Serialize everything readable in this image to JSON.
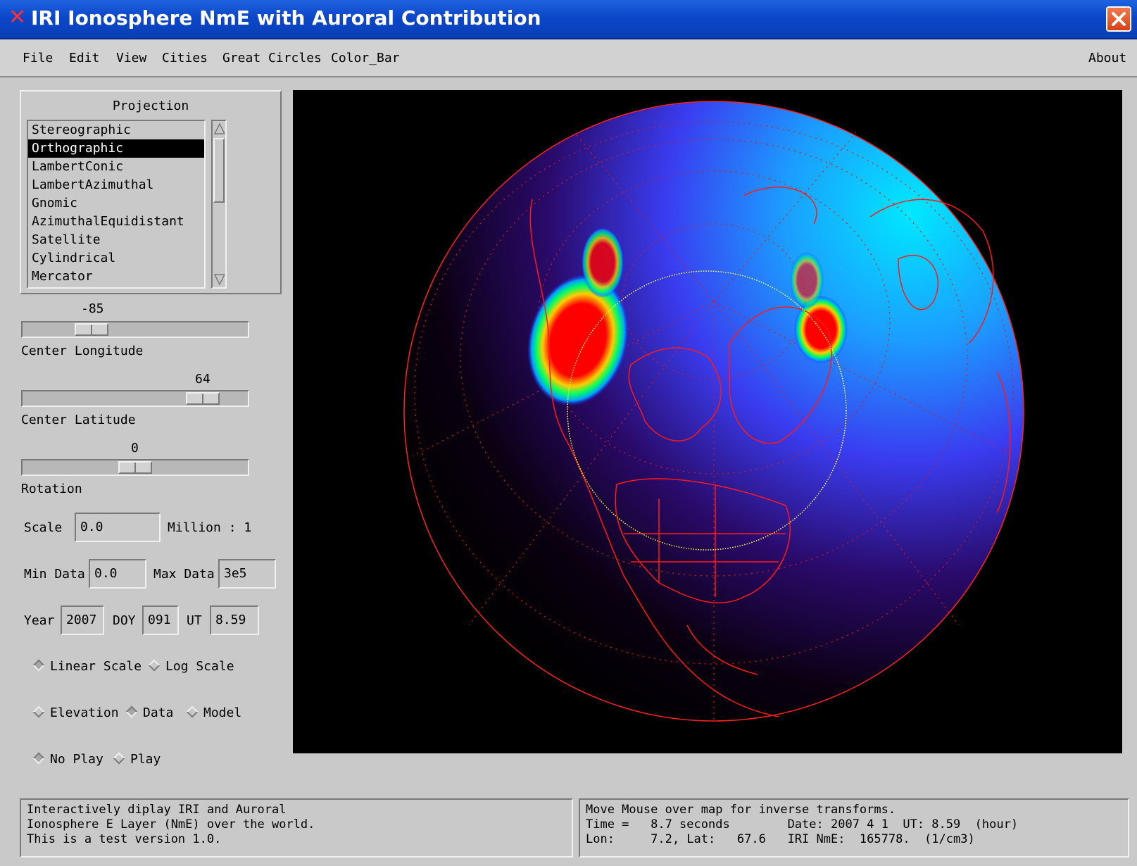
{
  "window": {
    "title": "IRI Ionosphere NmE with Auroral Contribution"
  },
  "menu": {
    "file": "File",
    "edit": "Edit",
    "view": "View",
    "cities": "Cities",
    "great_circles": "Great Circles",
    "color_bar": "Color_Bar",
    "about": "About"
  },
  "projection": {
    "label": "Projection",
    "items": [
      "Stereographic",
      "Orthographic",
      "LambertConic",
      "LambertAzimuthal",
      "Gnomic",
      "AzimuthalEquidistant",
      "Satellite",
      "Cylindrical",
      "Mercator"
    ],
    "selected": "Orthographic"
  },
  "sliders": {
    "center_longitude": {
      "label": "Center Longitude",
      "value": "-85"
    },
    "center_latitude": {
      "label": "Center Latitude",
      "value": "64"
    },
    "rotation": {
      "label": "Rotation",
      "value": "0"
    }
  },
  "fields": {
    "scale_label": "Scale",
    "scale_value": "0.0",
    "scale_unit": "Million : 1",
    "min_label": "Min Data",
    "min_value": "0.0",
    "max_label": "Max Data",
    "max_value": "3e5",
    "year_label": "Year",
    "year_value": "2007",
    "doy_label": "DOY",
    "doy_value": "091",
    "ut_label": "UT",
    "ut_value": "8.59"
  },
  "radios": {
    "linear": "Linear Scale",
    "log": "Log Scale",
    "elevation": "Elevation",
    "data": "Data",
    "model": "Model",
    "noplay": "No Play",
    "play": "Play"
  },
  "status": {
    "left": "Interactively diplay IRI and Auroral\nIonosphere E Layer (NmE) over the world.\nThis is a test version 1.0.",
    "right": "Move Mouse over map for inverse transforms.\nTime =   8.7 seconds        Date: 2007 4 1  UT: 8.59  (hour)\nLon:     7.2, Lat:   67.6   IRI NmE:  165778.  (1/cm3)"
  }
}
